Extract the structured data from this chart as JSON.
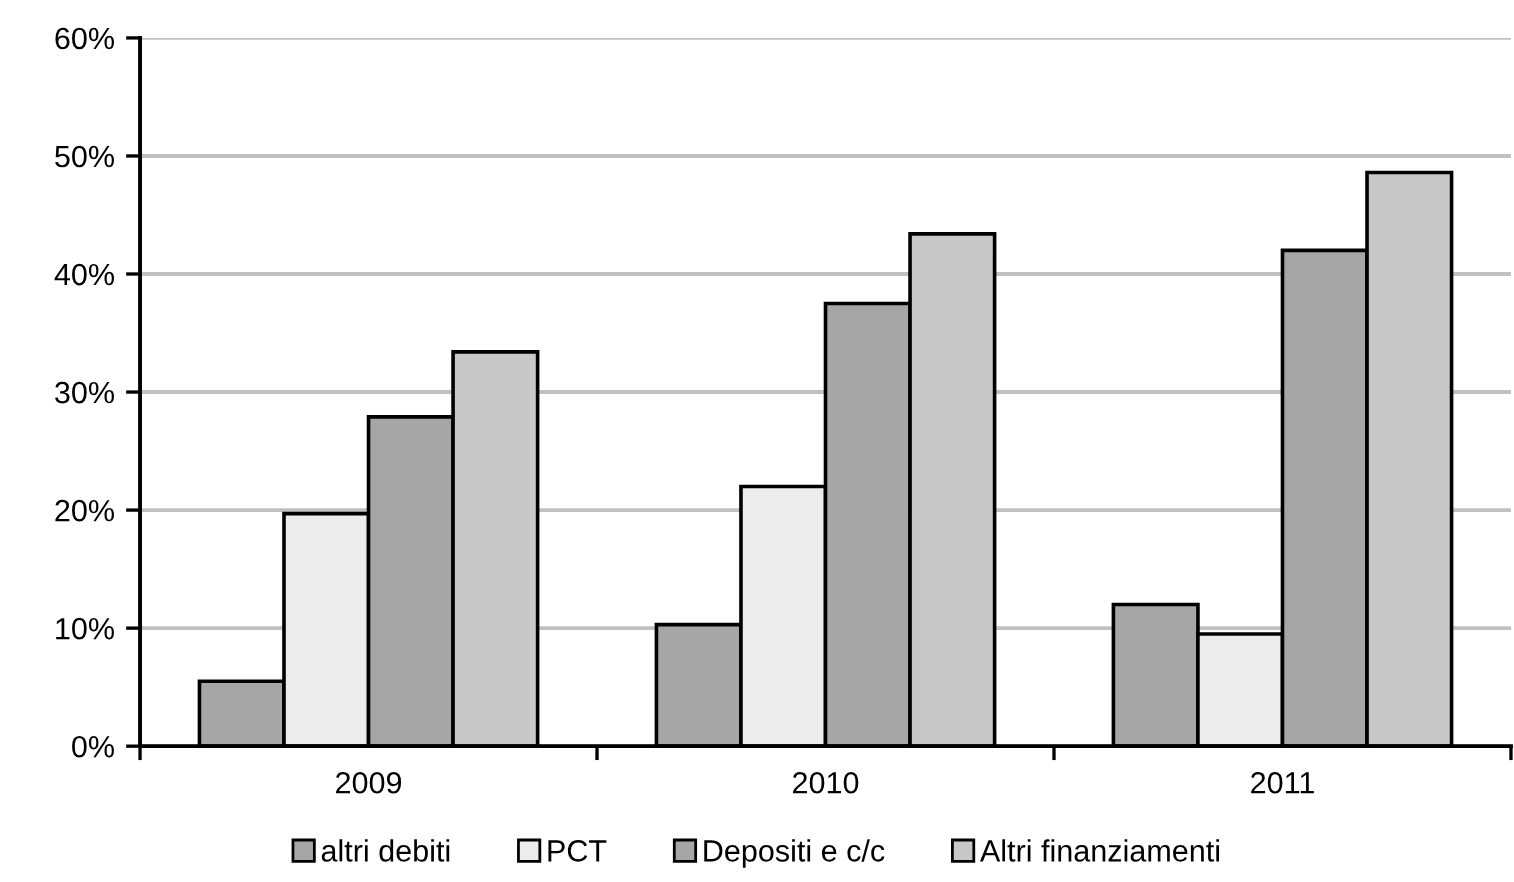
{
  "chart_data": {
    "type": "bar",
    "categories": [
      "2009",
      "2010",
      "2011"
    ],
    "series": [
      {
        "name": "altri debiti",
        "color": "#a6a6a6",
        "values": [
          5.5,
          10.3,
          12.0
        ]
      },
      {
        "name": "PCT",
        "color": "#ececec",
        "values": [
          19.7,
          22.0,
          9.5
        ]
      },
      {
        "name": "Depositi e c/c",
        "color": "#a6a6a6",
        "values": [
          27.9,
          37.5,
          42.0
        ]
      },
      {
        "name": "Altri finanziamenti",
        "color": "#c8c8c8",
        "values": [
          33.4,
          43.4,
          48.6
        ]
      }
    ],
    "ylim": [
      0,
      60
    ],
    "yticks": [
      {
        "value": 0,
        "label": "0%"
      },
      {
        "value": 10,
        "label": "10%"
      },
      {
        "value": 20,
        "label": "20%"
      },
      {
        "value": 30,
        "label": "30%"
      },
      {
        "value": 40,
        "label": "40%"
      },
      {
        "value": 50,
        "label": "50%"
      },
      {
        "value": 60,
        "label": "60%"
      }
    ],
    "grid": "y",
    "legend": "bottom"
  }
}
